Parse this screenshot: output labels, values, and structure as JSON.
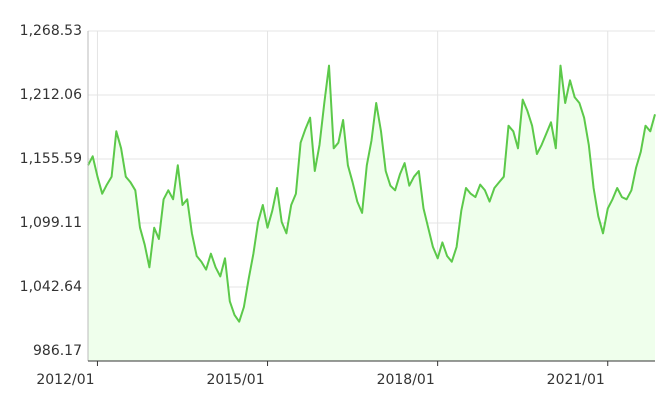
{
  "chart_data": {
    "type": "line",
    "area": true,
    "color": "#5cc94a",
    "fill_color": "#efffec",
    "grid": true,
    "x": [
      "2011/11",
      "2011/12",
      "2012/01",
      "2012/02",
      "2012/03",
      "2012/04",
      "2012/05",
      "2012/06",
      "2012/07",
      "2012/08",
      "2012/09",
      "2012/10",
      "2012/11",
      "2012/12",
      "2013/01",
      "2013/02",
      "2013/03",
      "2013/04",
      "2013/05",
      "2013/06",
      "2013/07",
      "2013/08",
      "2013/09",
      "2013/10",
      "2013/11",
      "2013/12",
      "2014/01",
      "2014/02",
      "2014/03",
      "2014/04",
      "2014/05",
      "2014/06",
      "2014/07",
      "2014/08",
      "2014/09",
      "2014/10",
      "2014/11",
      "2014/12",
      "2015/01",
      "2015/02",
      "2015/03",
      "2015/04",
      "2015/05",
      "2015/06",
      "2015/07",
      "2015/08",
      "2015/09",
      "2015/10",
      "2015/11",
      "2015/12",
      "2016/01",
      "2016/02",
      "2016/03",
      "2016/04",
      "2016/05",
      "2016/06",
      "2016/07",
      "2016/08",
      "2016/09",
      "2016/10",
      "2016/11",
      "2016/12",
      "2017/01",
      "2017/02",
      "2017/03",
      "2017/04",
      "2017/05",
      "2017/06",
      "2017/07",
      "2017/08",
      "2017/09",
      "2017/10",
      "2017/11",
      "2017/12",
      "2018/01",
      "2018/02",
      "2018/03",
      "2018/04",
      "2018/05",
      "2018/06",
      "2018/07",
      "2018/08",
      "2018/09",
      "2018/10",
      "2018/11",
      "2018/12",
      "2019/01",
      "2019/02",
      "2019/03",
      "2019/04",
      "2019/05",
      "2019/06",
      "2019/07",
      "2019/08",
      "2019/09",
      "2019/10",
      "2019/11",
      "2019/12",
      "2020/01",
      "2020/02",
      "2020/03",
      "2020/04",
      "2020/05",
      "2020/06",
      "2020/07",
      "2020/08",
      "2020/09",
      "2020/10",
      "2020/11",
      "2020/12",
      "2021/01",
      "2021/02",
      "2021/03",
      "2021/04",
      "2021/05",
      "2021/06",
      "2021/07",
      "2021/08",
      "2021/09",
      "2021/10",
      "2021/11"
    ],
    "values": [
      1150,
      1158,
      1140,
      1125,
      1133,
      1140,
      1180,
      1165,
      1140,
      1135,
      1128,
      1095,
      1080,
      1060,
      1095,
      1085,
      1120,
      1128,
      1120,
      1150,
      1115,
      1120,
      1090,
      1070,
      1065,
      1058,
      1072,
      1060,
      1052,
      1068,
      1030,
      1018,
      1012,
      1025,
      1050,
      1072,
      1100,
      1115,
      1095,
      1110,
      1130,
      1100,
      1090,
      1115,
      1125,
      1170,
      1182,
      1192,
      1145,
      1168,
      1205,
      1238,
      1165,
      1170,
      1190,
      1150,
      1135,
      1118,
      1108,
      1150,
      1172,
      1205,
      1180,
      1145,
      1132,
      1128,
      1142,
      1152,
      1132,
      1140,
      1145,
      1112,
      1095,
      1078,
      1068,
      1082,
      1070,
      1065,
      1078,
      1110,
      1130,
      1125,
      1122,
      1133,
      1128,
      1118,
      1130,
      1135,
      1140,
      1185,
      1180,
      1165,
      1208,
      1198,
      1185,
      1160,
      1168,
      1178,
      1188,
      1165,
      1238,
      1205,
      1225,
      1210,
      1205,
      1192,
      1168,
      1130,
      1105,
      1090,
      1112,
      1120,
      1130,
      1122,
      1120,
      1128,
      1148,
      1162,
      1185,
      1180,
      1195
    ],
    "ylim": [
      977.35,
      1268.53
    ],
    "yticks": [
      {
        "value": 986.17,
        "label": "986.17"
      },
      {
        "value": 1042.64,
        "label": "1,042.64"
      },
      {
        "value": 1099.11,
        "label": "1,099.11"
      },
      {
        "value": 1155.59,
        "label": "1,155.59"
      },
      {
        "value": 1212.06,
        "label": "1,212.06"
      },
      {
        "value": 1268.53,
        "label": "1,268.53"
      }
    ],
    "xticks": [
      "2012/01",
      "2015/01",
      "2018/01",
      "2021/01"
    ]
  }
}
